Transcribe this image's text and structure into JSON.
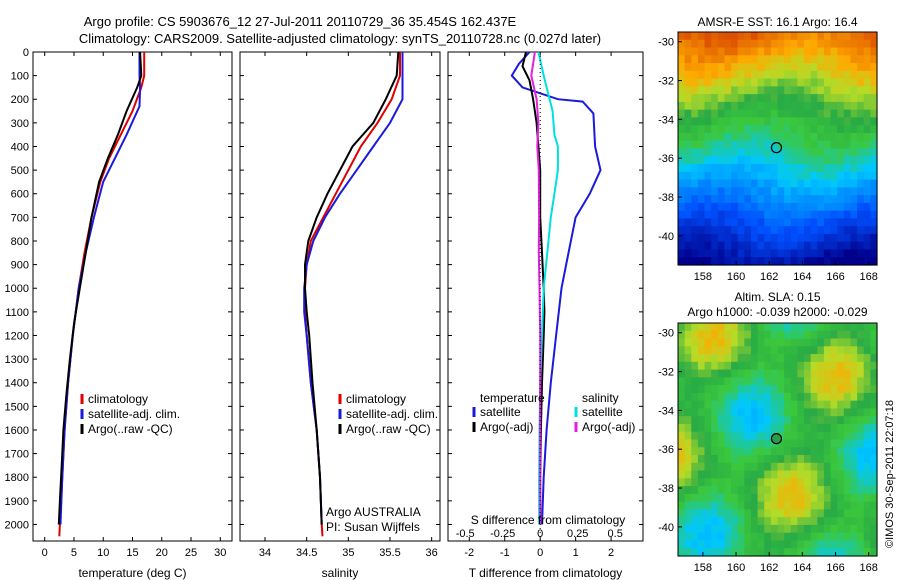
{
  "header": {
    "line1": "Argo profile: CS 5903676_12 27-Jul-2011 20110729_36 35.454S 162.437E",
    "line2": "Climatology: CARS2009. Satellite-adjusted climatology: synTS_20110728.nc (0.027d later)"
  },
  "colors": {
    "red": "#e00000",
    "blue": "#1a1adc",
    "black": "#000000",
    "cyan": "#00e0e0",
    "magenta": "#e020e0"
  },
  "chart_data": [
    {
      "type": "line",
      "name_id": "temperature-panel",
      "xlabel": "temperature (deg C)",
      "ylabel": "",
      "xlim": [
        -2,
        32
      ],
      "ylim": [
        2070,
        0
      ],
      "xticks": [
        0,
        5,
        10,
        15,
        20,
        25,
        30
      ],
      "yticks": [
        0,
        100,
        200,
        300,
        400,
        500,
        600,
        700,
        800,
        900,
        1000,
        1100,
        1200,
        1300,
        1400,
        1500,
        1600,
        1700,
        1800,
        1900,
        2000
      ],
      "legend": [
        "climatology",
        "satellite-adj. clim.",
        "Argo(..raw -QC)"
      ],
      "series": [
        {
          "color": "red",
          "points": [
            [
              17,
              0
            ],
            [
              17,
              100
            ],
            [
              16.5,
              150
            ],
            [
              15,
              250
            ],
            [
              13,
              350
            ],
            [
              11,
              450
            ],
            [
              9.5,
              550
            ],
            [
              8,
              700
            ],
            [
              6.8,
              850
            ],
            [
              5.8,
              1000
            ],
            [
              4.8,
              1200
            ],
            [
              4,
              1400
            ],
            [
              3.4,
              1600
            ],
            [
              3,
              1800
            ],
            [
              2.6,
              2000
            ],
            [
              2.5,
              2050
            ]
          ]
        },
        {
          "color": "blue",
          "points": [
            [
              16.2,
              0
            ],
            [
              16.2,
              100
            ],
            [
              16.3,
              150
            ],
            [
              16.2,
              230
            ],
            [
              14,
              350
            ],
            [
              12,
              450
            ],
            [
              10,
              550
            ],
            [
              8.4,
              700
            ],
            [
              7,
              850
            ],
            [
              5.8,
              1000
            ],
            [
              4.8,
              1200
            ],
            [
              4,
              1400
            ],
            [
              3.4,
              1600
            ],
            [
              3,
              1800
            ],
            [
              2.7,
              2000
            ]
          ]
        },
        {
          "color": "black",
          "points": [
            [
              16.3,
              0
            ],
            [
              16.5,
              100
            ],
            [
              15.8,
              150
            ],
            [
              14,
              250
            ],
            [
              12.5,
              350
            ],
            [
              10.8,
              450
            ],
            [
              9.3,
              550
            ],
            [
              8,
              700
            ],
            [
              7,
              850
            ],
            [
              6,
              1000
            ],
            [
              5,
              1150
            ],
            [
              4.3,
              1300
            ],
            [
              3.7,
              1450
            ],
            [
              3.2,
              1600
            ],
            [
              2.9,
              1750
            ],
            [
              2.6,
              1900
            ],
            [
              2.4,
              2000
            ]
          ]
        }
      ]
    },
    {
      "type": "line",
      "name_id": "salinity-panel",
      "xlabel": "salinity",
      "xlim": [
        33.7,
        36.1
      ],
      "ylim": [
        2070,
        0
      ],
      "xticks": [
        34,
        34.5,
        35,
        35.5,
        36
      ],
      "legend": [
        "climatology",
        "satellite-adj. clim.",
        "Argo(..raw -QC)"
      ],
      "annotation": [
        "Argo AUSTRALIA",
        "PI: Susan Wijffels"
      ],
      "series": [
        {
          "color": "red",
          "points": [
            [
              35.62,
              0
            ],
            [
              35.62,
              100
            ],
            [
              35.52,
              200
            ],
            [
              35.35,
              300
            ],
            [
              35.15,
              400
            ],
            [
              35.0,
              500
            ],
            [
              34.85,
              600
            ],
            [
              34.7,
              700
            ],
            [
              34.55,
              800
            ],
            [
              34.5,
              900
            ],
            [
              34.48,
              1000
            ],
            [
              34.48,
              1100
            ],
            [
              34.5,
              1200
            ],
            [
              34.55,
              1400
            ],
            [
              34.62,
              1600
            ],
            [
              34.66,
              1800
            ],
            [
              34.68,
              2000
            ],
            [
              34.69,
              2050
            ]
          ]
        },
        {
          "color": "blue",
          "points": [
            [
              35.65,
              0
            ],
            [
              35.65,
              100
            ],
            [
              35.65,
              200
            ],
            [
              35.5,
              300
            ],
            [
              35.3,
              400
            ],
            [
              35.1,
              500
            ],
            [
              34.9,
              600
            ],
            [
              34.72,
              700
            ],
            [
              34.58,
              800
            ],
            [
              34.5,
              900
            ],
            [
              34.47,
              1000
            ],
            [
              34.47,
              1100
            ],
            [
              34.5,
              1200
            ],
            [
              34.55,
              1400
            ],
            [
              34.62,
              1600
            ],
            [
              34.66,
              1800
            ],
            [
              34.68,
              2000
            ]
          ]
        },
        {
          "color": "black",
          "points": [
            [
              35.6,
              0
            ],
            [
              35.58,
              100
            ],
            [
              35.45,
              200
            ],
            [
              35.3,
              300
            ],
            [
              35.05,
              400
            ],
            [
              34.9,
              500
            ],
            [
              34.75,
              600
            ],
            [
              34.62,
              700
            ],
            [
              34.52,
              800
            ],
            [
              34.48,
              900
            ],
            [
              34.48,
              1000
            ],
            [
              34.5,
              1100
            ],
            [
              34.53,
              1200
            ],
            [
              34.57,
              1400
            ],
            [
              34.62,
              1600
            ],
            [
              34.66,
              1800
            ],
            [
              34.68,
              2000
            ]
          ]
        }
      ]
    },
    {
      "type": "line",
      "name_id": "difference-panel",
      "xlabel": "T difference from climatology",
      "xlabel_top": "S difference from climatology",
      "xlim": [
        -2.6,
        2.9
      ],
      "ylim": [
        2070,
        0
      ],
      "xticks": [
        -2,
        -1,
        0,
        1,
        2
      ],
      "s_ticks": [
        -0.5,
        -0.25,
        0,
        0.25,
        0.5
      ],
      "legend_left_title": "temperature",
      "legend_right_title": "salinity",
      "legend_left": [
        "satellite",
        "Argo(-adj)"
      ],
      "legend_right": [
        "satellite",
        "Argo(-adj)"
      ],
      "series": [
        {
          "color": "blue",
          "points": [
            [
              -0.3,
              0
            ],
            [
              -0.6,
              50
            ],
            [
              -0.8,
              100
            ],
            [
              -0.5,
              150
            ],
            [
              0.5,
              200
            ],
            [
              1.2,
              210
            ],
            [
              1.5,
              260
            ],
            [
              1.55,
              400
            ],
            [
              1.7,
              500
            ],
            [
              1.4,
              600
            ],
            [
              1.0,
              700
            ],
            [
              0.8,
              850
            ],
            [
              0.6,
              1000
            ],
            [
              0.45,
              1200
            ],
            [
              0.3,
              1400
            ],
            [
              0.18,
              1600
            ],
            [
              0.1,
              1800
            ],
            [
              0.05,
              2000
            ]
          ]
        },
        {
          "color": "black",
          "points": [
            [
              -0.4,
              0
            ],
            [
              -0.5,
              60
            ],
            [
              -0.3,
              120
            ],
            [
              -0.2,
              200
            ],
            [
              -0.1,
              300
            ],
            [
              -0.05,
              400
            ],
            [
              0.0,
              500
            ],
            [
              0.0,
              700
            ],
            [
              0.05,
              850
            ],
            [
              0.1,
              1000
            ],
            [
              0.12,
              1100
            ],
            [
              0.1,
              1200
            ],
            [
              0.05,
              1400
            ],
            [
              0.02,
              1600
            ],
            [
              0.0,
              1800
            ],
            [
              0.0,
              2000
            ]
          ]
        },
        {
          "color": "cyan",
          "points": [
            [
              -0.05,
              0
            ],
            [
              0.1,
              100
            ],
            [
              0.35,
              250
            ],
            [
              0.4,
              350
            ],
            [
              0.5,
              400
            ],
            [
              0.5,
              500
            ],
            [
              0.4,
              600
            ],
            [
              0.3,
              700
            ],
            [
              0.2,
              850
            ],
            [
              0.1,
              1000
            ],
            [
              0.05,
              1200
            ],
            [
              0.0,
              1400
            ],
            [
              -0.02,
              1600
            ],
            [
              -0.03,
              1800
            ],
            [
              -0.03,
              2000
            ]
          ]
        },
        {
          "color": "magenta",
          "points": [
            [
              -0.15,
              0
            ],
            [
              -0.25,
              100
            ],
            [
              -0.1,
              200
            ],
            [
              -0.05,
              300
            ],
            [
              -0.08,
              400
            ],
            [
              -0.04,
              500
            ],
            [
              -0.03,
              700
            ],
            [
              -0.04,
              850
            ],
            [
              -0.02,
              1000
            ],
            [
              0.0,
              1200
            ],
            [
              0.0,
              1400
            ],
            [
              0.0,
              1600
            ],
            [
              0.0,
              1800
            ],
            [
              0.0,
              2000
            ]
          ]
        }
      ]
    },
    {
      "type": "heatmap",
      "name_id": "sst-map",
      "title": "AMSR-E SST: 16.1  Argo: 16.4",
      "xlim": [
        156.5,
        168.5
      ],
      "ylim": [
        -41.5,
        -29.5
      ],
      "xticks": [
        158,
        160,
        162,
        164,
        166,
        168
      ],
      "yticks": [
        -30,
        -32,
        -34,
        -36,
        -38,
        -40
      ],
      "marker": {
        "lon": 162.437,
        "lat": -35.454
      }
    },
    {
      "type": "heatmap",
      "name_id": "sla-map",
      "title": "Altim. SLA: 0.15",
      "subtitle": "Argo h1000: -0.039 h2000: -0.029",
      "xlim": [
        156.5,
        168.5
      ],
      "ylim": [
        -41.5,
        -29.5
      ],
      "xticks": [
        158,
        160,
        162,
        164,
        166,
        168
      ],
      "yticks": [
        -30,
        -32,
        -34,
        -36,
        -38,
        -40
      ],
      "marker": {
        "lon": 162.437,
        "lat": -35.454
      }
    }
  ],
  "footer_vertical": "©IMOS 30-Sep-2011 22:07:18"
}
